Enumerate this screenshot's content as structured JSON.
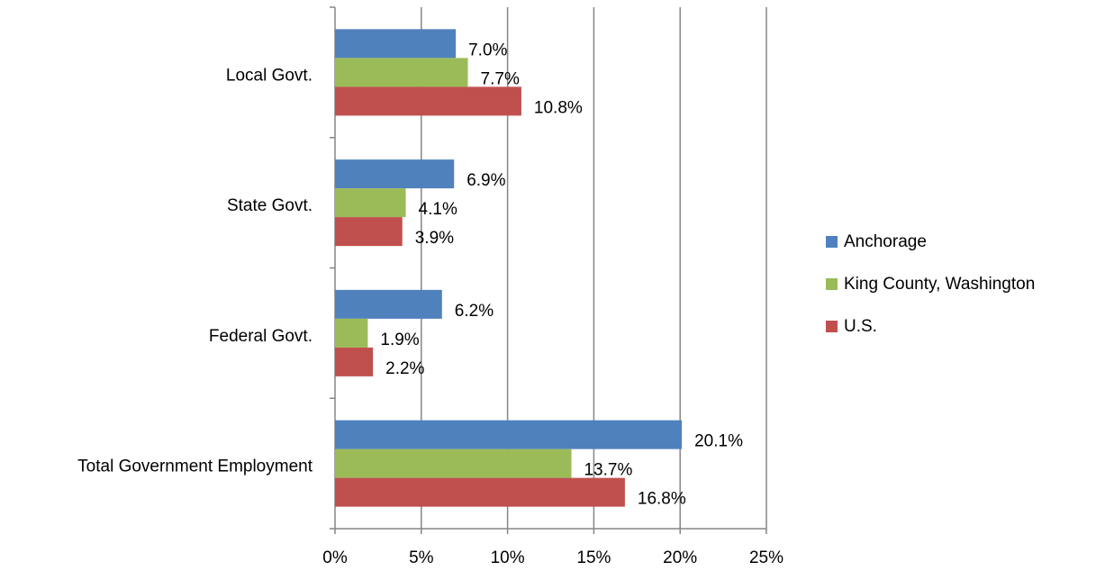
{
  "chart_data": {
    "type": "bar",
    "orientation": "horizontal",
    "categories": [
      "Local Govt.",
      "State Govt.",
      "Federal Govt.",
      "Total Government Employment"
    ],
    "series": [
      {
        "name": "Anchorage",
        "color": "#4f81bd",
        "values": [
          7.0,
          6.9,
          6.2,
          20.1
        ],
        "value_labels": [
          "7.0%",
          "6.9%",
          "6.2%",
          "20.1%"
        ]
      },
      {
        "name": "King County, Washington",
        "color": "#9bbb59",
        "values": [
          7.7,
          4.1,
          1.9,
          13.7
        ],
        "value_labels": [
          "7.7%",
          "4.1%",
          "1.9%",
          "13.7%"
        ]
      },
      {
        "name": "U.S.",
        "color": "#c0504d",
        "values": [
          10.8,
          3.9,
          2.2,
          16.8
        ],
        "value_labels": [
          "10.8%",
          "3.9%",
          "2.2%",
          "16.8%"
        ]
      }
    ],
    "xlim": [
      0,
      25
    ],
    "xticks": [
      {
        "value": 0,
        "label": "0%"
      },
      {
        "value": 5,
        "label": "5%"
      },
      {
        "value": 10,
        "label": "10%"
      },
      {
        "value": 15,
        "label": "15%"
      },
      {
        "value": 20,
        "label": "20%"
      },
      {
        "value": 25,
        "label": "25%"
      }
    ],
    "grid": true,
    "legend": "right"
  }
}
